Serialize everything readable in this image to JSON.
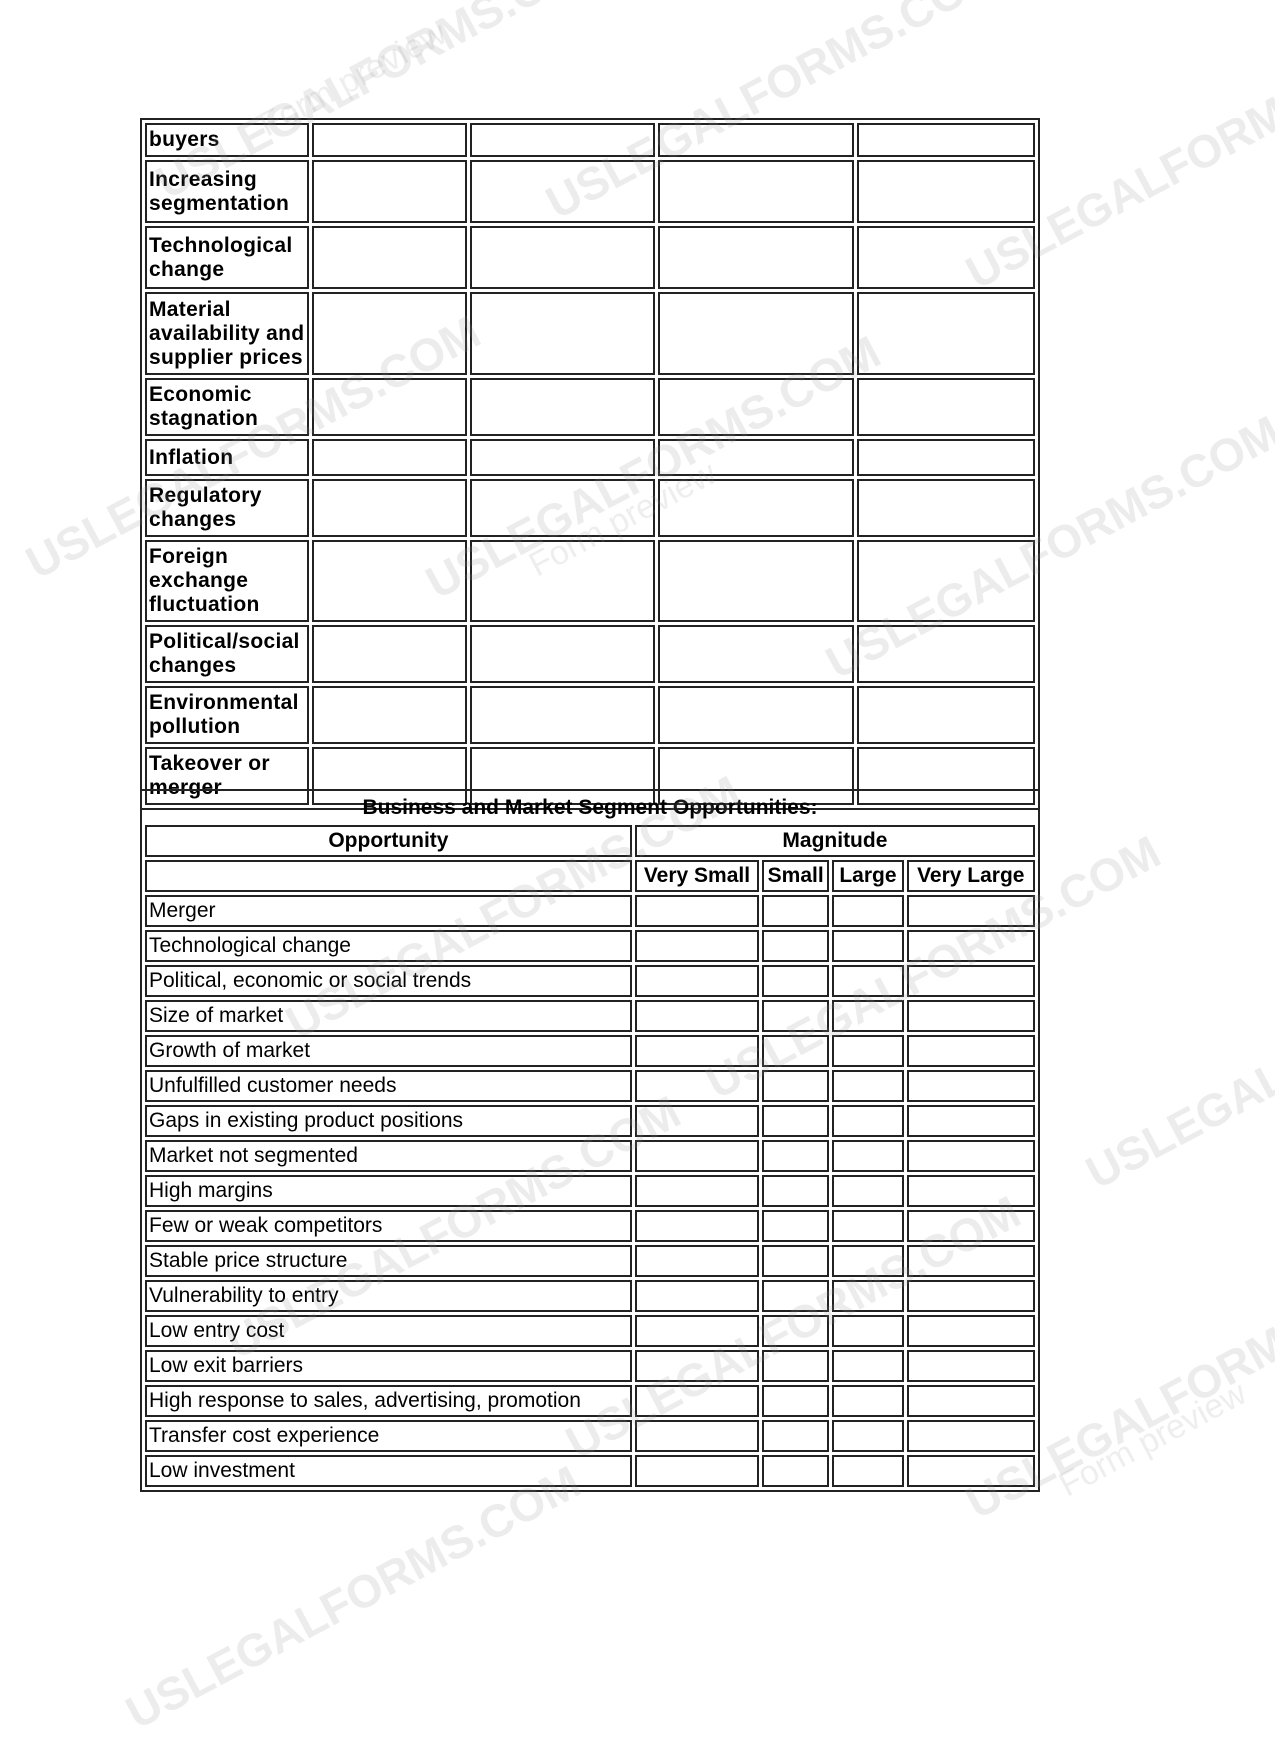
{
  "risk_table": {
    "rows": [
      "buyers",
      "Increasing segmentation",
      "Technological change",
      "Material availability and supplier prices",
      "Economic stagnation",
      "Inflation",
      "Regulatory changes",
      "Foreign exchange fluctuation",
      "Political/social changes",
      "Environmental pollution",
      "Takeover or merger"
    ]
  },
  "opportunities_table": {
    "title": "Business and Market Segment Opportunities:",
    "col_opportunity": "Opportunity",
    "col_magnitude": "Magnitude",
    "magnitude_levels": [
      "Very Small",
      "Small",
      "Large",
      "Very Large"
    ],
    "rows": [
      "Merger",
      "Technological change",
      "Political, economic or social trends",
      "Size of market",
      "Growth of market",
      "Unfulfilled customer needs",
      "Gaps in existing product positions",
      "Market not segmented",
      "High margins",
      "Few or weak competitors",
      "Stable price structure",
      "Vulnerability to entry",
      "Low entry cost",
      "Low exit barriers",
      "High response to sales, advertising, promotion",
      "Transfer cost experience",
      "Low investment"
    ]
  },
  "watermark": {
    "brand": "USLEGALFORMS.COM",
    "sub": "Form preview"
  }
}
